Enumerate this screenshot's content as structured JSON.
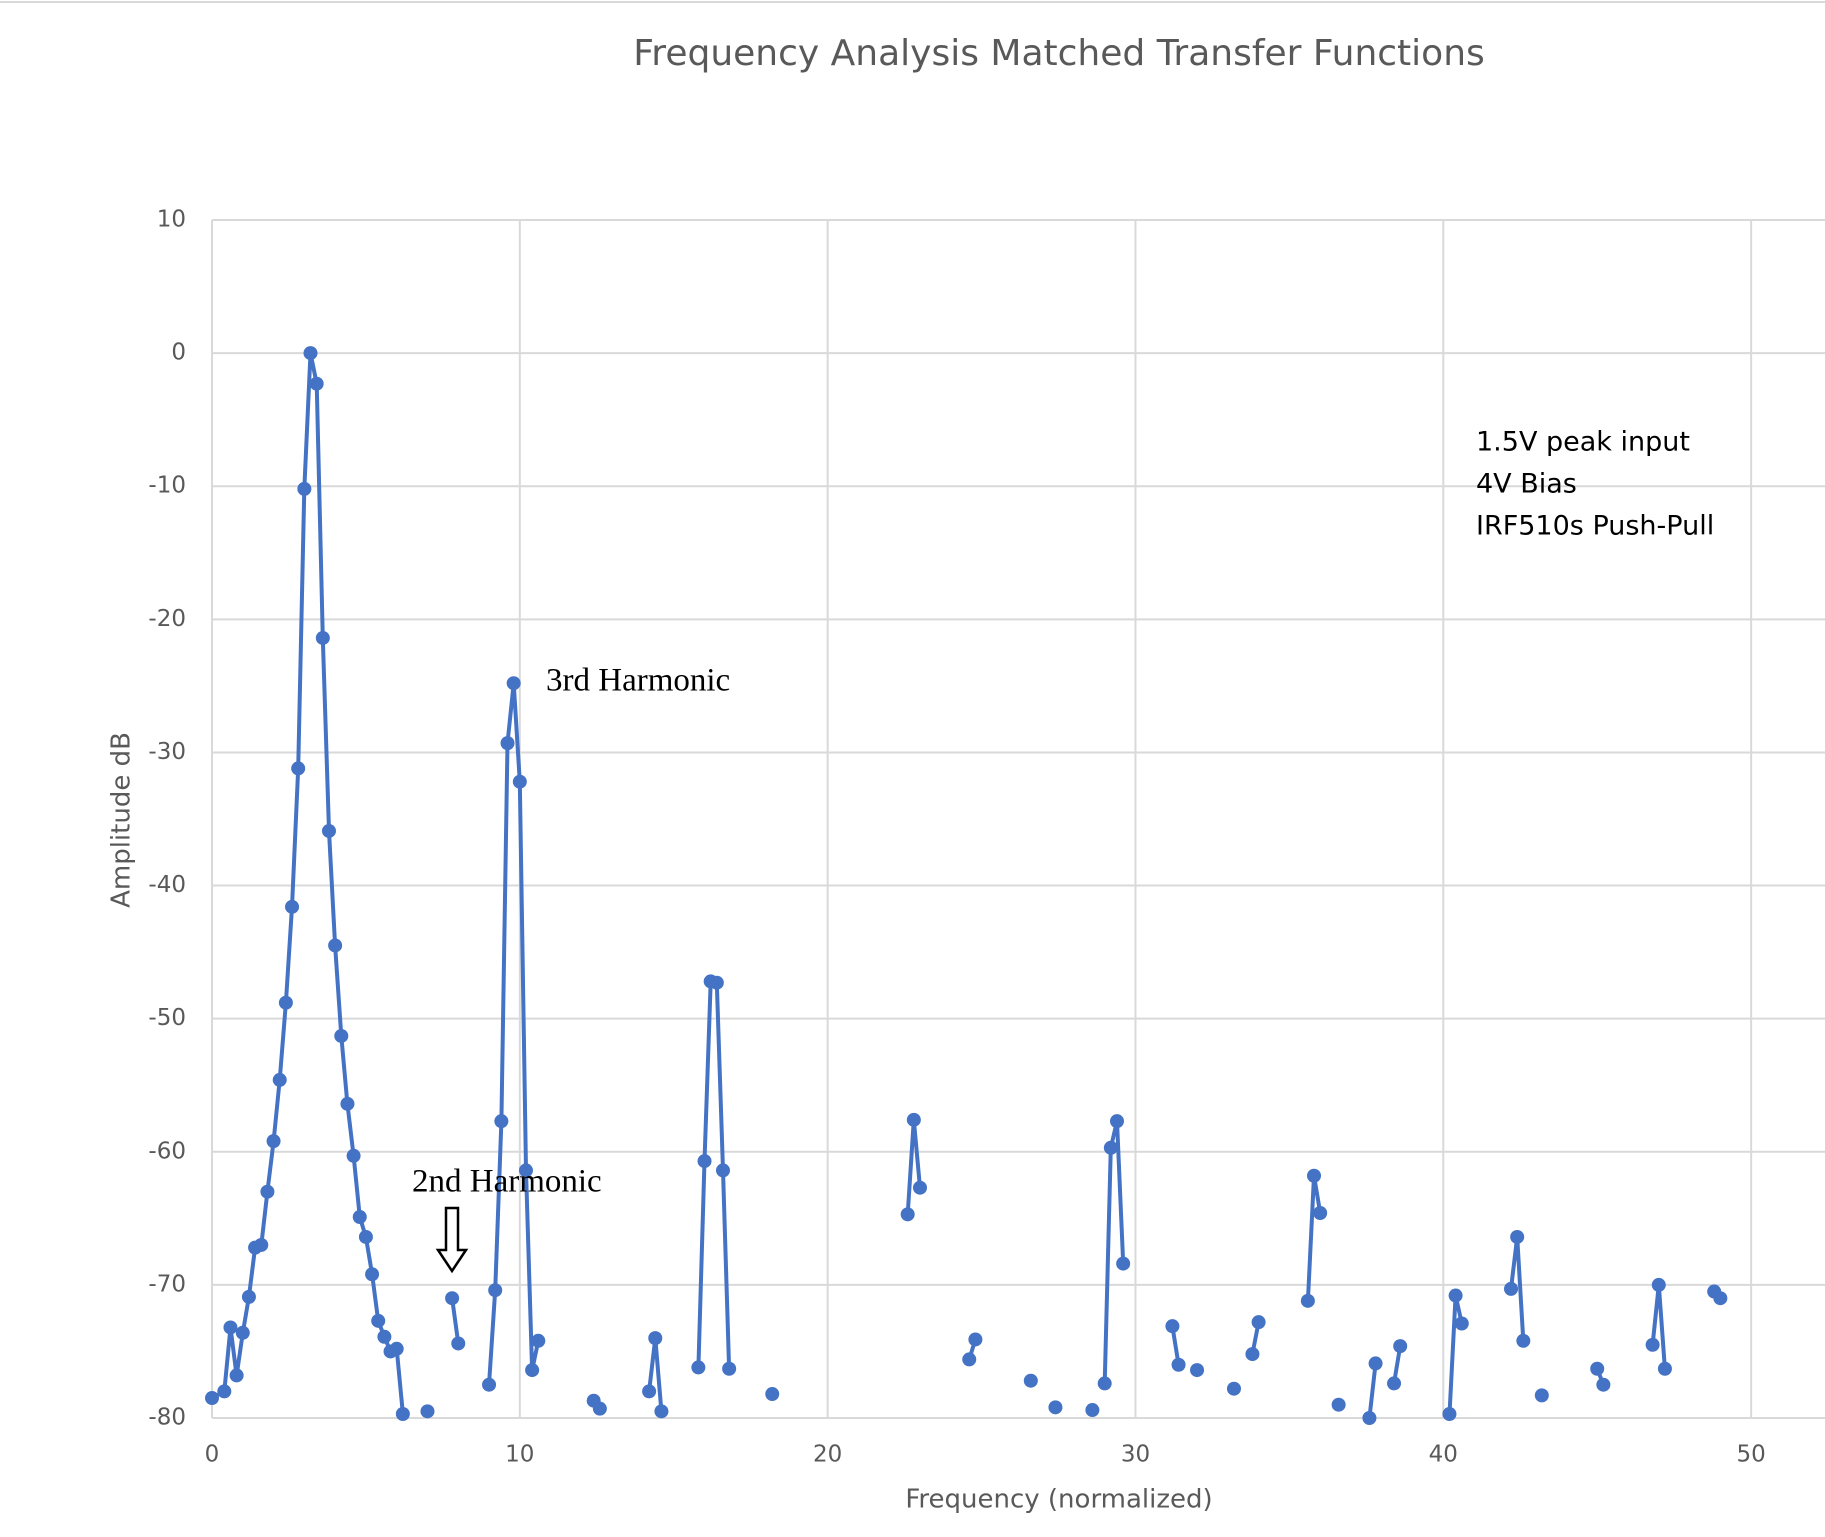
{
  "chart_data": {
    "type": "line",
    "title": "Frequency Analysis Matched Transfer Functions",
    "x_label": "Frequency (normalized)",
    "y_label": "Amplitude dB",
    "xlim": [
      0,
      52.4
    ],
    "ylim": [
      -80,
      10
    ],
    "xticks": [
      0,
      10,
      20,
      30,
      40,
      50
    ],
    "yticks": [
      -80,
      -70,
      -60,
      -50,
      -40,
      -30,
      -20,
      -10,
      0,
      10
    ],
    "grid": true,
    "annotations": [
      "3rd Harmonic",
      "2nd Harmonic"
    ],
    "notes": [
      "1.5V peak input",
      "4V Bias",
      "IRF510s Push-Pull"
    ],
    "series": [
      {
        "name": "Amplitude",
        "color": "#4472c4",
        "x": [
          0,
          0.4,
          0.6,
          0.8,
          1.0,
          1.2,
          1.4,
          1.6,
          1.8,
          2.0,
          2.2,
          2.4,
          2.6,
          2.8,
          3.0,
          3.2,
          3.4,
          3.6,
          3.8,
          4.0,
          4.2,
          4.4,
          4.6,
          4.8,
          5.0,
          5.2,
          5.4,
          5.6,
          5.8,
          6.0,
          6.2,
          6.6,
          7.0,
          7.4,
          7.8,
          8.0,
          8.6,
          9.0,
          9.2,
          9.4,
          9.6,
          9.8,
          10.0,
          10.2,
          10.4,
          10.6,
          11.6,
          12.4,
          12.6,
          13.4,
          14.2,
          14.4,
          14.6,
          15.2,
          15.8,
          16.0,
          16.2,
          16.4,
          16.6,
          16.8,
          17.6,
          18.2,
          20.4,
          22.6,
          22.8,
          23.0,
          23.8,
          24.6,
          24.8,
          25.8,
          26.6,
          27.0,
          27.4,
          28.0,
          28.6,
          28.8,
          29.0,
          29.2,
          29.4,
          29.6,
          30.4,
          31.2,
          31.4,
          31.7,
          32.0,
          32.6,
          33.2,
          33.5,
          33.8,
          34.0,
          34.8,
          35.6,
          35.8,
          36.0,
          36.3,
          36.6,
          37.1,
          37.6,
          37.8,
          38.1,
          38.4,
          38.6,
          39.4,
          40.2,
          40.4,
          40.6,
          41.4,
          42.2,
          42.4,
          42.6,
          42.9,
          43.2,
          44.1,
          45.0,
          45.2,
          46.0,
          46.8,
          47.0,
          47.2,
          48.0,
          48.8,
          49.0
        ],
        "values": [
          -78.5,
          -78,
          -73.2,
          -76.8,
          -73.6,
          -70.9,
          -67.2,
          -67,
          -63,
          -59.2,
          -54.6,
          -48.8,
          -41.6,
          -31.2,
          -10.2,
          0,
          -2.3,
          -21.4,
          -35.9,
          -44.5,
          -51.3,
          -56.4,
          -60.3,
          -64.9,
          -66.4,
          -69.2,
          -72.7,
          -73.9,
          -75,
          -74.8,
          -79.7,
          null,
          -79.5,
          null,
          -71,
          -74.4,
          null,
          -77.5,
          -70.4,
          -57.7,
          -29.3,
          -24.8,
          -32.2,
          -61.4,
          -76.4,
          -74.2,
          null,
          -78.7,
          -79.3,
          null,
          -78,
          -74,
          -79.5,
          null,
          -76.2,
          -60.7,
          -47.2,
          -47.3,
          -61.4,
          -76.3,
          null,
          -78.2,
          null,
          -64.7,
          -57.6,
          -62.7,
          null,
          -75.6,
          -74.1,
          null,
          -77.2,
          null,
          -79.2,
          null,
          -79.4,
          null,
          -77.4,
          -59.7,
          -57.7,
          -68.4,
          null,
          -73.1,
          -76,
          null,
          -76.4,
          null,
          -77.8,
          null,
          -75.2,
          -72.8,
          null,
          -71.2,
          -61.8,
          -64.6,
          null,
          -79,
          null,
          -80,
          -75.9,
          null,
          -77.4,
          -74.6,
          null,
          -79.7,
          -70.8,
          -72.9,
          null,
          -70.3,
          -66.4,
          -74.2,
          null,
          -78.3,
          null,
          -76.3,
          -77.5,
          null,
          -74.5,
          -70,
          -76.3,
          null,
          -70.5,
          -71
        ]
      }
    ]
  }
}
